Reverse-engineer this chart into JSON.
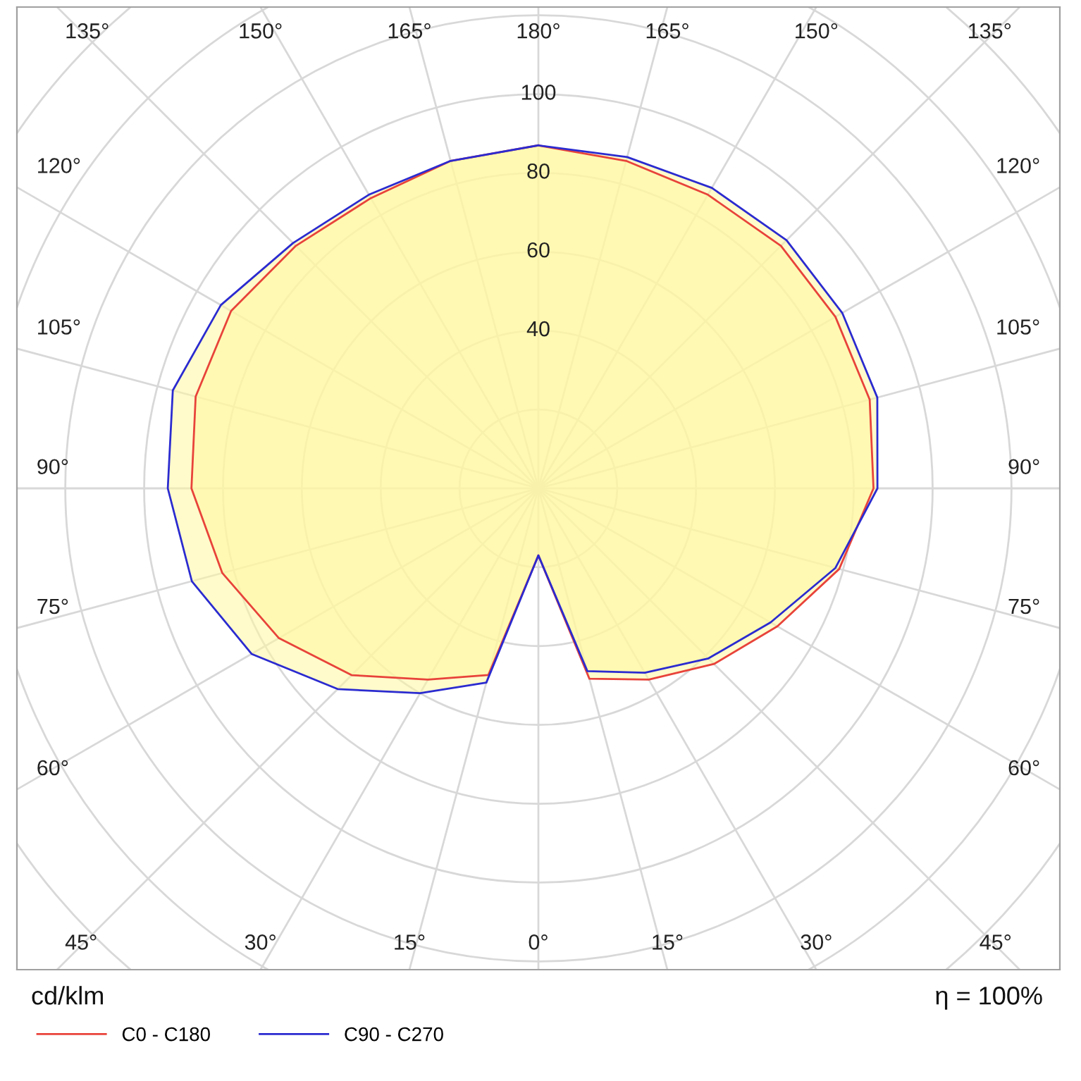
{
  "chart_data": {
    "type": "radar",
    "categories": [
      "180°",
      "165°",
      "150°",
      "135°",
      "120°",
      "105°",
      "90°",
      "75°",
      "60°",
      "45°",
      "30°",
      "15°",
      "0°",
      "15°",
      "30°",
      "45°",
      "60°",
      "75°",
      "90°",
      "105°",
      "120°",
      "135°",
      "150°",
      "165°"
    ],
    "series": [
      {
        "name": "C0 - C180",
        "color": "#e8433a",
        "values": [
          87,
          86,
          86,
          87,
          87,
          87,
          85,
          79,
          70,
          63,
          56,
          50,
          17,
          49,
          56,
          67,
          76,
          83,
          88,
          90,
          90,
          87,
          85,
          86
        ]
      },
      {
        "name": "C90 - C270",
        "color": "#2b2bd0",
        "values": [
          87,
          87,
          88,
          89,
          89,
          89,
          86,
          78,
          68,
          61,
          54,
          48,
          17,
          51,
          60,
          72,
          84,
          91,
          94,
          96,
          93,
          88,
          86,
          86
        ]
      }
    ],
    "ylim": [
      0,
      180
    ],
    "yticks": [
      40,
      60,
      80,
      100
    ],
    "ylabel": "cd/klm",
    "annotations": [
      "η = 100%"
    ],
    "legend": "bottom",
    "grid": true
  }
}
